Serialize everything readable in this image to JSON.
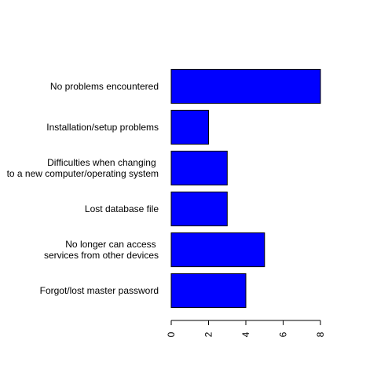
{
  "chart_data": {
    "type": "bar",
    "orientation": "horizontal",
    "title": "",
    "xlabel": "",
    "ylabel": "",
    "categories": [
      [
        "No problems encountered"
      ],
      [
        "Installation/setup problems"
      ],
      [
        "Difficulties when changing ",
        "to a new computer/operating system"
      ],
      [
        "Lost database file"
      ],
      [
        "No longer can access ",
        "services from other devices"
      ],
      [
        "Forgot/lost master password"
      ]
    ],
    "values": [
      8,
      2,
      3,
      3,
      5,
      4
    ],
    "xlim": [
      0,
      8
    ],
    "ticks": [
      0,
      2,
      4,
      6,
      8
    ],
    "tick_labels": [
      "0",
      "2",
      "4",
      "6",
      "8"
    ],
    "bar_color": "#0000ff",
    "bar_border": "#000000",
    "grid": false,
    "legend": "none"
  }
}
